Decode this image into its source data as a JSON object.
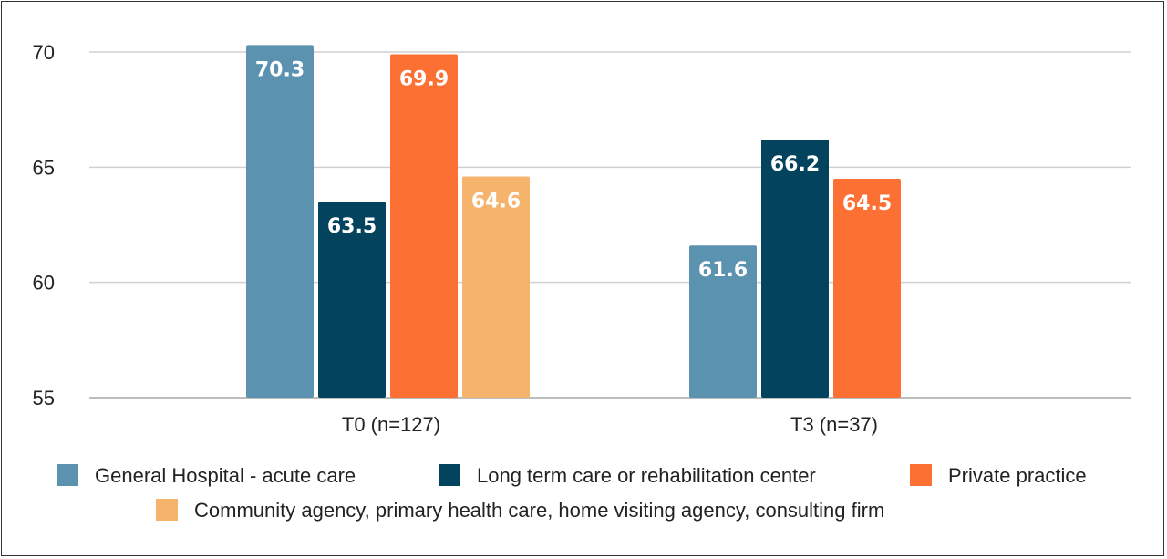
{
  "chart_data": {
    "type": "bar",
    "categories": [
      "T0 (n=127)",
      "T3 (n=37)"
    ],
    "series": [
      {
        "name": "General Hospital - acute care",
        "color": "#5b92b0",
        "values": [
          70.3,
          61.6
        ]
      },
      {
        "name": "Long term care or rehabilitation center",
        "color": "#03435e",
        "values": [
          63.5,
          66.2
        ]
      },
      {
        "name": "Private practice",
        "color": "#fd7034",
        "values": [
          69.9,
          64.5
        ]
      },
      {
        "name": "Community agency, primary health care, home visiting agency, consulting firm",
        "color": "#f6b36c",
        "values": [
          64.6,
          null
        ]
      }
    ],
    "ylim": [
      55,
      70
    ],
    "yticks": [
      55,
      60,
      65,
      70
    ],
    "grid": true,
    "legend": "bottom",
    "title": "",
    "xlabel": "",
    "ylabel": ""
  }
}
